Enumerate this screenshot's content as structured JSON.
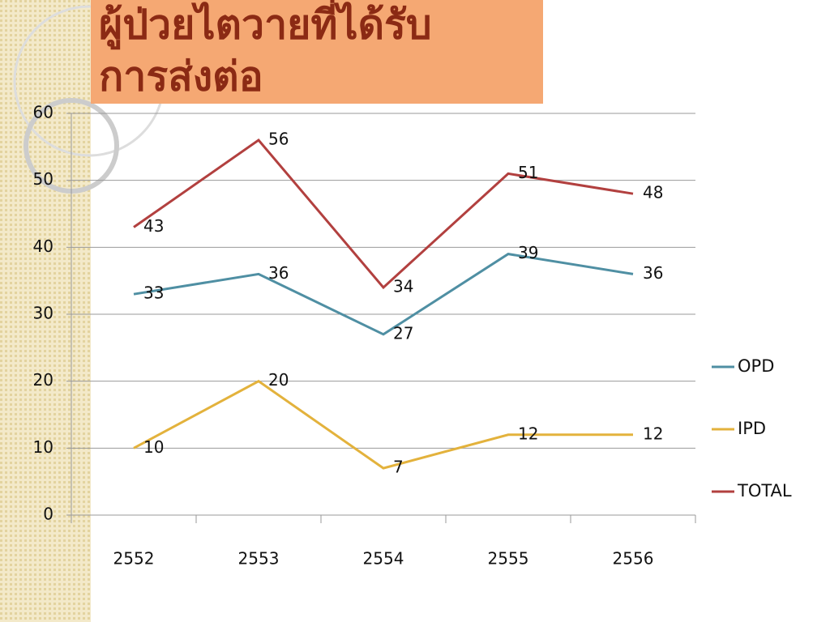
{
  "chart_data": {
    "type": "line",
    "title": [
      "ผู้ป่วยไตวายที่ได้รับ",
      "การส่งต่อ"
    ],
    "categories": [
      "2552",
      "2553",
      "2554",
      "2555",
      "2556"
    ],
    "series": [
      {
        "name": "OPD",
        "color": "#4f8fa3",
        "values": [
          33,
          36,
          27,
          39,
          36
        ]
      },
      {
        "name": "IPD",
        "color": "#e3b23c",
        "values": [
          10,
          20,
          7,
          12,
          12
        ]
      },
      {
        "name": "TOTAL",
        "color": "#b2403f",
        "values": [
          43,
          56,
          34,
          51,
          48
        ]
      }
    ],
    "ylim": [
      0,
      60
    ],
    "yticks": [
      0,
      10,
      20,
      30,
      40,
      50,
      60
    ],
    "grid": true,
    "legend": "right"
  }
}
